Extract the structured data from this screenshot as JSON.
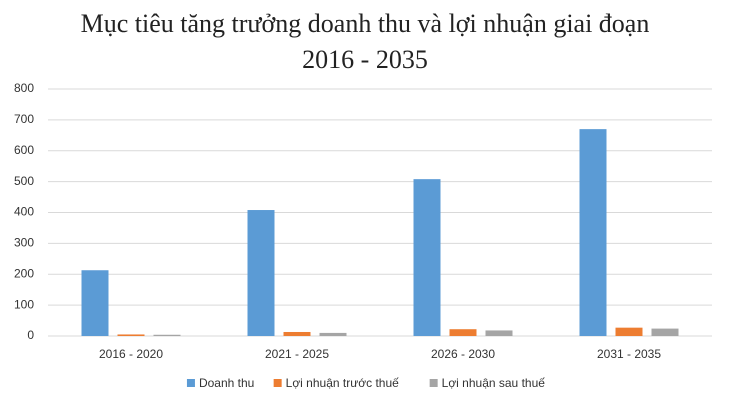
{
  "chart_data": {
    "type": "bar",
    "title": "Mục tiêu tăng trưởng doanh thu và lợi nhuận giai đoạn 2016 - 2035",
    "categories": [
      "2016 - 2020",
      "2021 - 2025",
      "2026 - 2030",
      "2031 - 2035"
    ],
    "series": [
      {
        "name": "Doanh thu",
        "color": "#5b9bd5",
        "values": [
          213,
          408,
          508,
          670
        ]
      },
      {
        "name": "Lợi nhuận trước thuế",
        "color": "#ed7d31",
        "values": [
          5,
          13,
          22,
          27
        ]
      },
      {
        "name": "Lợi nhuận sau thuế",
        "color": "#a5a5a5",
        "values": [
          4,
          10,
          18,
          24
        ]
      }
    ],
    "ylim": [
      0,
      800
    ],
    "yticks": [
      0,
      100,
      200,
      300,
      400,
      500,
      600,
      700,
      800
    ],
    "grid": true,
    "legend": "bottom"
  }
}
